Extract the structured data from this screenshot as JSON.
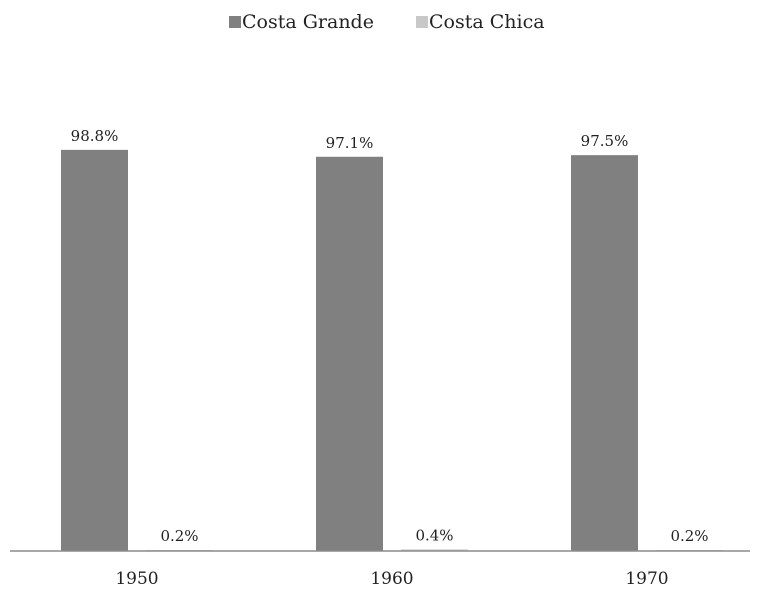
{
  "chart_data": {
    "type": "bar",
    "title": "",
    "xlabel": "",
    "ylabel": "",
    "categories": [
      "1950",
      "1960",
      "1970"
    ],
    "series": [
      {
        "name": "Costa Grande",
        "color": "#808080",
        "values": [
          98.8,
          97.1,
          97.5
        ],
        "labels": [
          "98.8%",
          "97.1%",
          "97.5%"
        ]
      },
      {
        "name": "Costa Chica",
        "color": "#c8c8c8",
        "values": [
          0.2,
          0.4,
          0.2
        ],
        "labels": [
          "0.2%",
          "0.4%",
          "0.2%"
        ]
      }
    ],
    "ylim": [
      0,
      100
    ],
    "grid": false,
    "legend_position": "top-center",
    "axis_color": "#8c8c8c"
  }
}
